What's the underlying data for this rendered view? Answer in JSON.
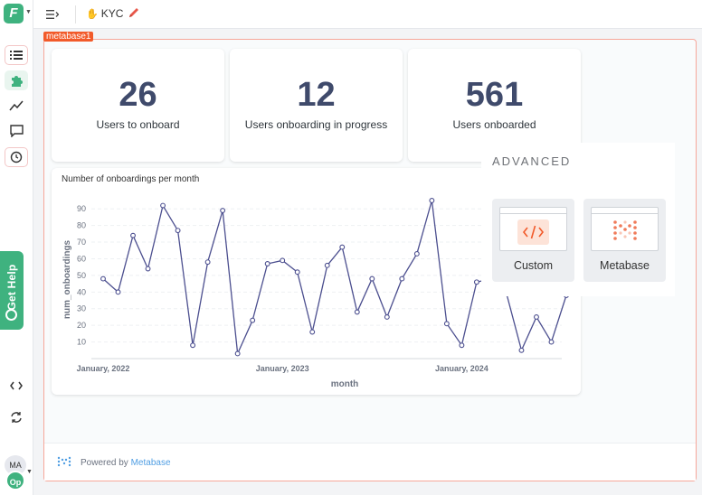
{
  "app": {
    "logo_letter": "F",
    "avatar_initials": "MA",
    "workspace_initials": "Op",
    "get_help_label": "Get Help"
  },
  "topbar": {
    "page_name": "KYC"
  },
  "embed": {
    "tag_label": "metabase1",
    "stats": [
      {
        "value": "26",
        "label": "Users to onboard"
      },
      {
        "value": "12",
        "label": "Users onboarding in progress"
      },
      {
        "value": "561",
        "label": "Users onboarded"
      }
    ],
    "chart_card_title": "Number of onboardings per month",
    "powered_by_prefix": "Powered by",
    "powered_by_link": "Metabase"
  },
  "advanced": {
    "title": "ADVANCED",
    "options": [
      {
        "label": "Custom",
        "icon": "code-icon"
      },
      {
        "label": "Metabase",
        "icon": "metabase-logo-icon"
      }
    ]
  },
  "colors": {
    "accent_green": "#3fb27f",
    "embed_tag": "#f25a2a",
    "stat_number": "#3f4a6b",
    "chart_line": "#4c4f8f",
    "link": "#509ee3"
  },
  "chart_data": {
    "type": "line",
    "title": "",
    "xlabel": "month",
    "ylabel": "num_onboardings",
    "ylim": [
      0,
      95
    ],
    "yticks": [
      10,
      20,
      30,
      40,
      50,
      60,
      70,
      80,
      90
    ],
    "xtick_labels": [
      "January, 2022",
      "January, 2023",
      "January, 2024"
    ],
    "grid": true,
    "series": [
      {
        "values": [
          48,
          40,
          74,
          54,
          92,
          77,
          8,
          58,
          89,
          3,
          23,
          57,
          59,
          52,
          16,
          56,
          67,
          28,
          48,
          25,
          48,
          63,
          95,
          21,
          8,
          46,
          48,
          39,
          5,
          25,
          10,
          38
        ]
      }
    ]
  }
}
